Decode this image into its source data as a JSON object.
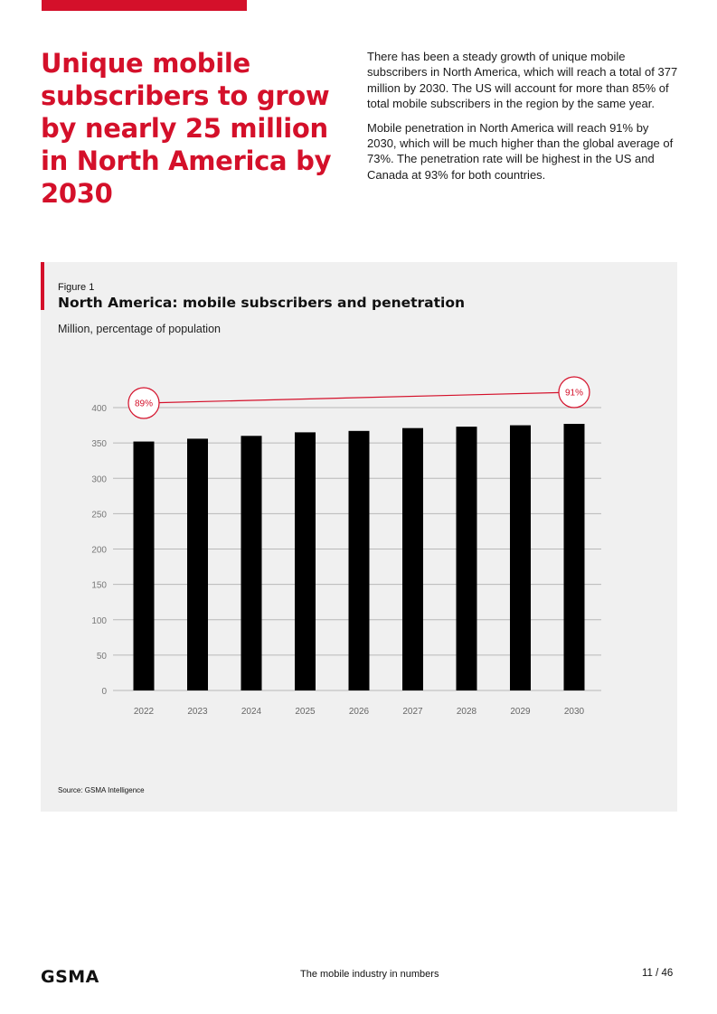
{
  "headline": "Unique mobile subscribers to grow by nearly 25 million in North America by 2030",
  "intro": [
    "There has been a steady growth of unique mobile subscribers in North America, which will reach a total of 377 million by 2030. The US will account for more than 85% of total mobile subscribers in the region by the same year.",
    "Mobile penetration in North America will reach 91% by 2030, which will be much higher than the global average of 73%. The penetration rate will be highest in the US and Canada at 93% for both countries."
  ],
  "figure": {
    "label": "Figure 1",
    "title": "North America: mobile subscribers and penetration",
    "subtitle": "Million, percentage of population",
    "source": "Source: GSMA Intelligence"
  },
  "chart_data": {
    "type": "bar",
    "title": "North America: mobile subscribers and penetration",
    "subtitle": "Million, percentage of population",
    "categories": [
      "2022",
      "2023",
      "2024",
      "2025",
      "2026",
      "2027",
      "2028",
      "2029",
      "2030"
    ],
    "series": [
      {
        "values": [
          352,
          356,
          360,
          365,
          367,
          371,
          373,
          375,
          377
        ],
        "color": "#000000"
      }
    ],
    "penetration_line": {
      "start_label": "89%",
      "end_label": "91%",
      "start_value": 89,
      "end_value": 91,
      "color": "#d4102a"
    },
    "y_ticks": [
      0,
      50,
      100,
      150,
      200,
      250,
      300,
      350,
      400
    ],
    "ylim": [
      0,
      400
    ],
    "grid": true,
    "legend": "none"
  },
  "colors": {
    "accent": "#d4102a",
    "bar": "#000000",
    "panel": "#f0f0f0"
  },
  "footer": {
    "logo": "GSMA",
    "title": "The mobile industry in numbers",
    "page": "11 / 46"
  }
}
